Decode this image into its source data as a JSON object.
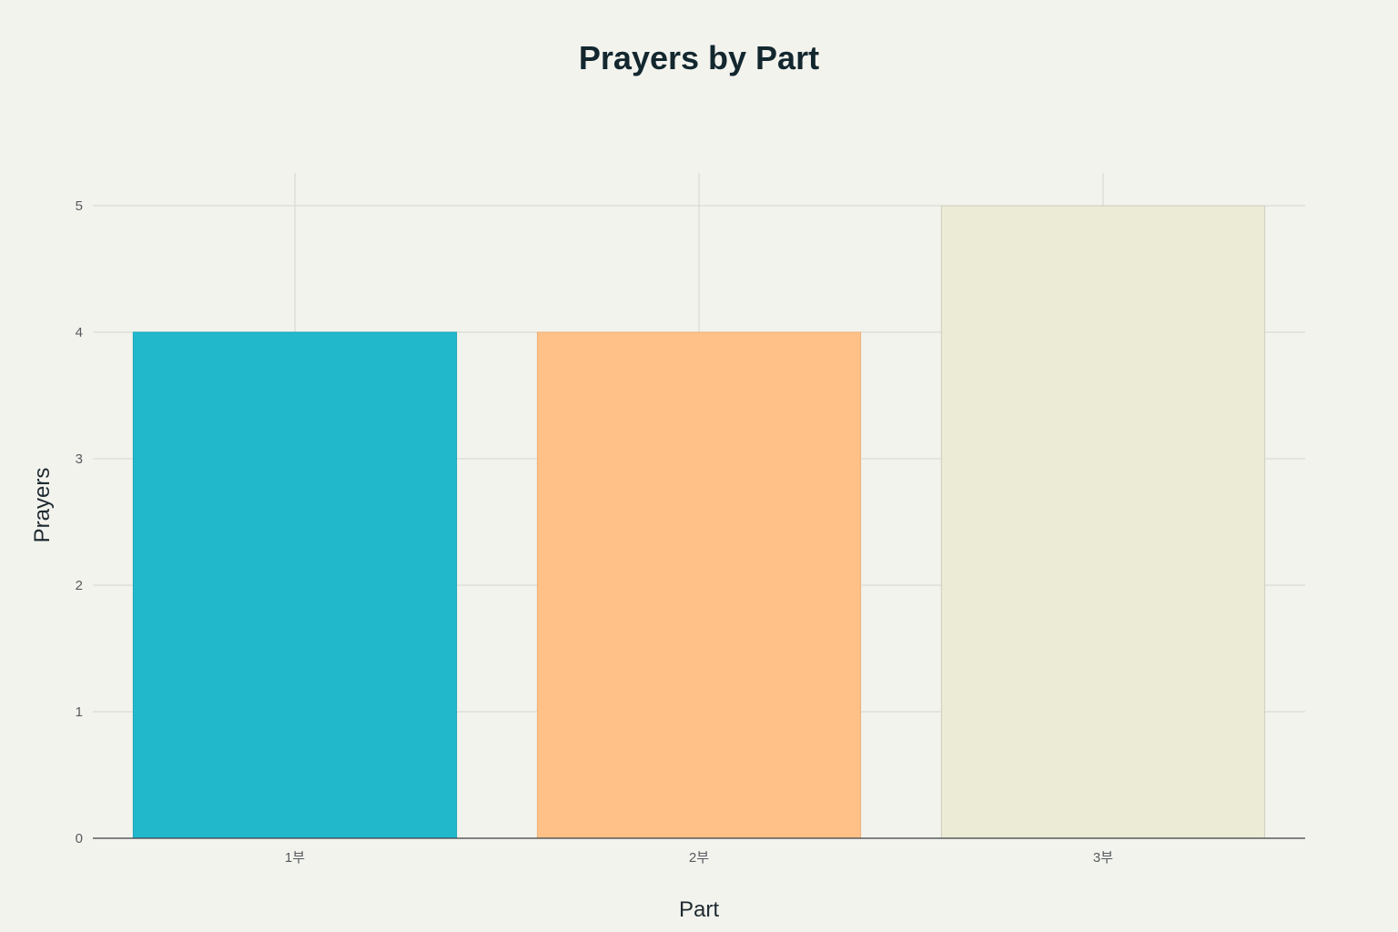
{
  "chart_data": {
    "type": "bar",
    "title": "Prayers by Part",
    "xlabel": "Part",
    "ylabel": "Prayers",
    "categories": [
      "1부",
      "2부",
      "3부"
    ],
    "values": [
      4,
      4,
      5
    ],
    "ylim": [
      0,
      5
    ],
    "yticks": [
      "0",
      "1",
      "2",
      "3",
      "4",
      "5"
    ],
    "colors": [
      "#21b8cc",
      "#ffc188",
      "#ecebd6"
    ],
    "bar_outline_colors": [
      "#1aa5b8",
      "#f0b07a",
      "#cfcec0"
    ],
    "grid": true,
    "legend": "none"
  }
}
